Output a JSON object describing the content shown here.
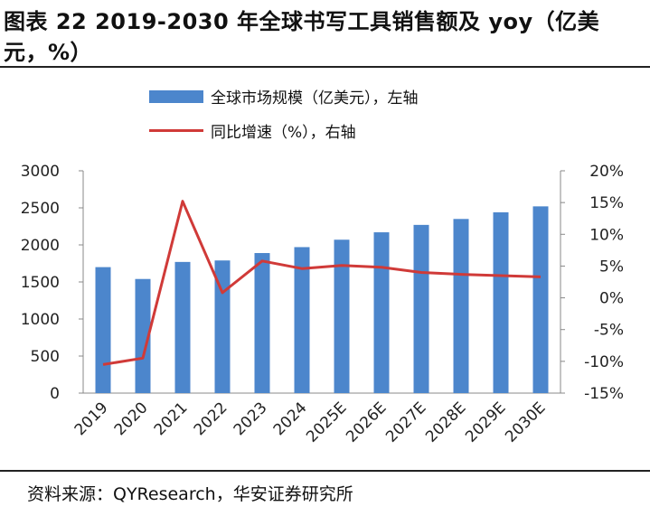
{
  "figure": {
    "title_line1": "图表 22  2019-2030 年全球书写工具销售额及 yoy（亿美",
    "title_line2": "元，%）",
    "source": "资料来源：QYResearch，华安证券研究所"
  },
  "chart_data": {
    "type": "bar+line",
    "categories": [
      "2019",
      "2020",
      "2021",
      "2022",
      "2023",
      "2024",
      "2025E",
      "2026E",
      "2027E",
      "2028E",
      "2029E",
      "2030E"
    ],
    "series": [
      {
        "name": "全球市场规模（亿美元），左轴",
        "type": "bar",
        "axis": "left",
        "color": "#4C86CC",
        "values": [
          1700,
          1540,
          1770,
          1790,
          1890,
          1970,
          2070,
          2170,
          2270,
          2350,
          2440,
          2520
        ]
      },
      {
        "name": "同比增速（%），右轴",
        "type": "line",
        "axis": "right",
        "color": "#D03A38",
        "values": [
          -10.5,
          -9.5,
          15.2,
          0.8,
          5.8,
          4.6,
          5.1,
          4.8,
          4.0,
          3.7,
          3.5,
          3.3
        ]
      }
    ],
    "left_axis": {
      "ylim": [
        0,
        3000
      ],
      "ticks": [
        "0",
        "500",
        "1000",
        "1500",
        "2000",
        "2500",
        "3000"
      ]
    },
    "right_axis": {
      "ylim": [
        -15,
        20
      ],
      "ticks": [
        "-15%",
        "-10%",
        "-5%",
        "0%",
        "5%",
        "10%",
        "15%",
        "20%"
      ]
    },
    "grid": false,
    "legend": "top"
  }
}
